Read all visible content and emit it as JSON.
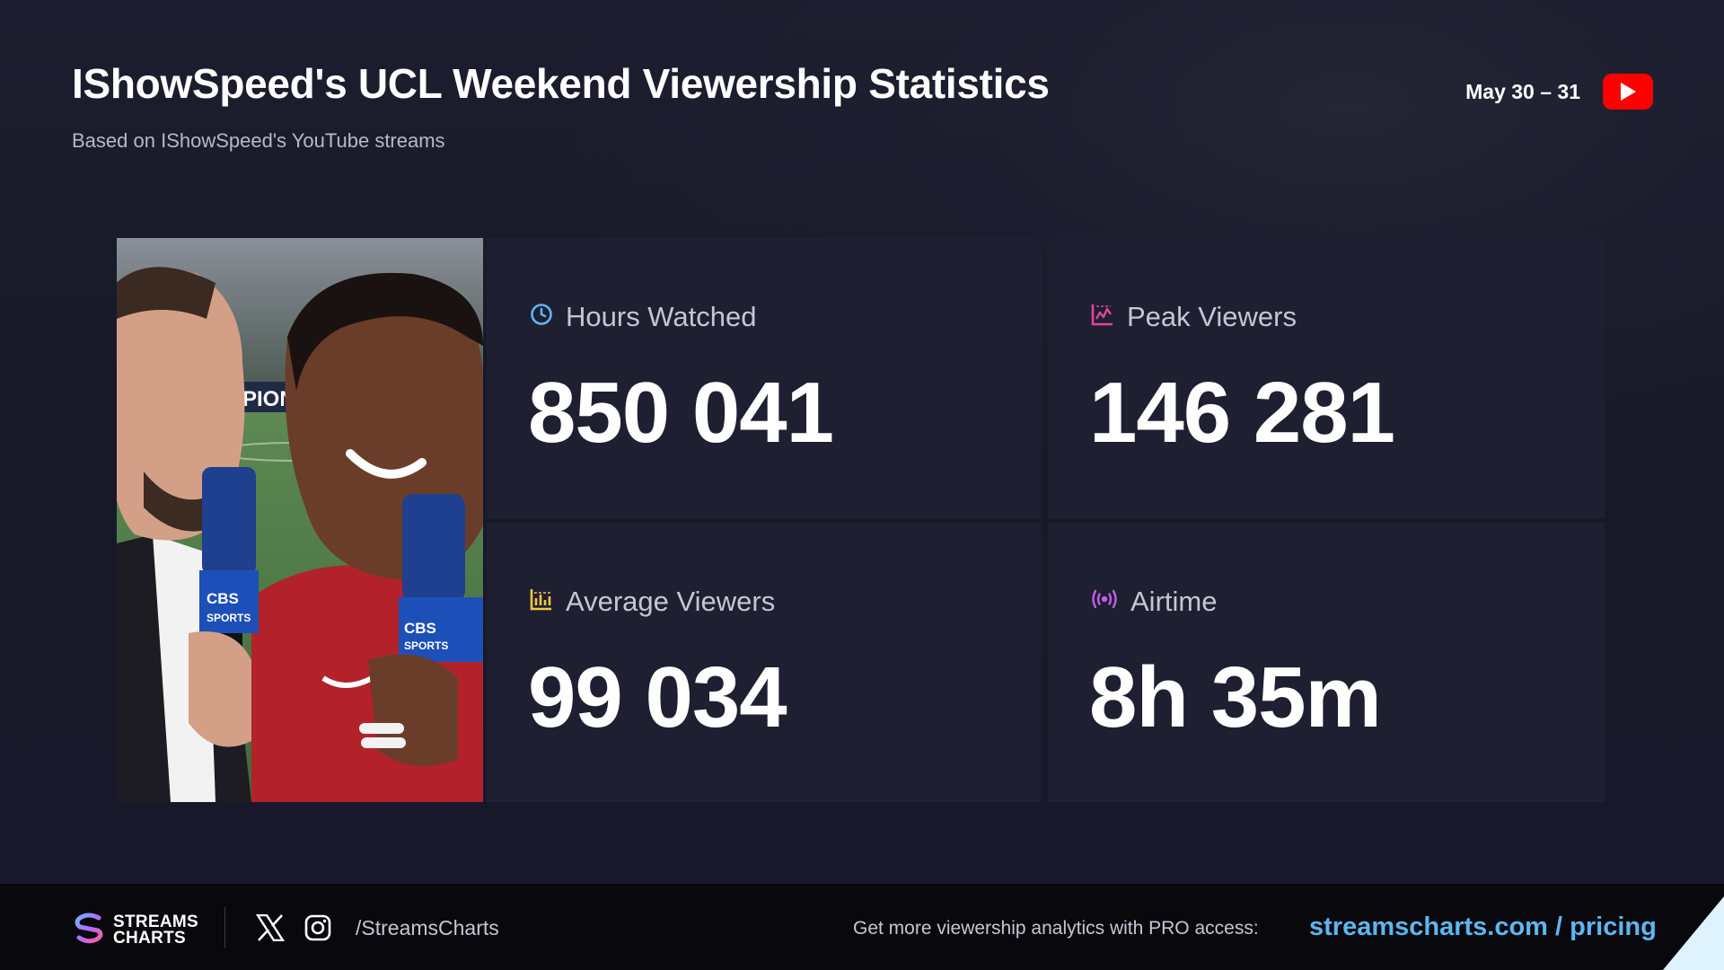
{
  "header": {
    "title": "IShowSpeed's UCL Weekend Viewership Statistics",
    "subtitle": "Based on IShowSpeed's YouTube streams",
    "date_range": "May 30 – 31",
    "platform_icon": "youtube-icon"
  },
  "stats": [
    {
      "label": "Hours Watched",
      "value": "850 041",
      "icon": "clock-icon",
      "icon_color": "#5db6f0"
    },
    {
      "label": "Peak Viewers",
      "value": "146 281",
      "icon": "line-chart-icon",
      "icon_color": "#e0469a"
    },
    {
      "label": "Average Viewers",
      "value": "99 034",
      "icon": "bar-chart-icon",
      "icon_color": "#f5c842"
    },
    {
      "label": "Airtime",
      "value": "8h 35m",
      "icon": "broadcast-icon",
      "icon_color": "#c45ee8"
    }
  ],
  "footer": {
    "logo_line1": "STREAMS",
    "logo_line2": "CHARTS",
    "handle": "/StreamsCharts",
    "promo_text": "Get more viewership analytics with PRO access:",
    "promo_link": "streamscharts.com / pricing"
  },
  "photo": {
    "mic_brand_1": "CBS",
    "mic_brand_2": "SPORTS",
    "background_banner": "PIONS"
  },
  "colors": {
    "background": "#17182a",
    "card": "#1e1f31",
    "accent_link": "#5db6f0",
    "youtube_red": "#ff0000"
  }
}
